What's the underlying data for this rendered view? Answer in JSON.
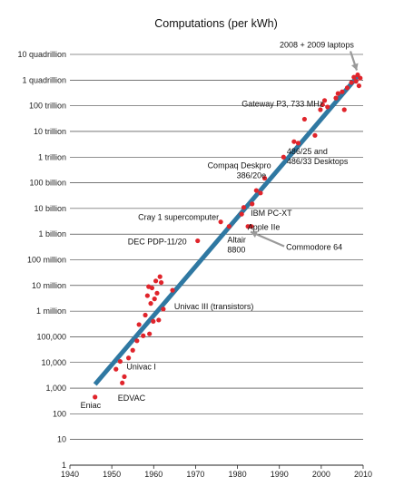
{
  "chart_data": {
    "type": "scatter",
    "title": "Computations (per kWh)",
    "xlim": [
      1940,
      2010
    ],
    "y_scale": "log10",
    "ylim": [
      1,
      10000000000000000
    ],
    "grid": true,
    "x_ticks": [
      {
        "value": 1940,
        "label": "1940"
      },
      {
        "value": 1950,
        "label": "1950"
      },
      {
        "value": 1960,
        "label": "1960"
      },
      {
        "value": 1970,
        "label": "1970"
      },
      {
        "value": 1980,
        "label": "1980"
      },
      {
        "value": 1990,
        "label": "1990"
      },
      {
        "value": 2000,
        "label": "2000"
      },
      {
        "value": 2010,
        "label": "2010"
      }
    ],
    "y_ticks": [
      {
        "value": 1,
        "label": "1"
      },
      {
        "value": 10,
        "label": "10"
      },
      {
        "value": 100,
        "label": "100"
      },
      {
        "value": 1000,
        "label": "1,000"
      },
      {
        "value": 10000,
        "label": "10,000"
      },
      {
        "value": 100000,
        "label": "100,000"
      },
      {
        "value": 1000000,
        "label": "1 million"
      },
      {
        "value": 10000000,
        "label": "10 million"
      },
      {
        "value": 100000000,
        "label": "100 million"
      },
      {
        "value": 1000000000,
        "label": "1 billion"
      },
      {
        "value": 10000000000,
        "label": "10 billion"
      },
      {
        "value": 100000000000,
        "label": "100 billion"
      },
      {
        "value": 1000000000000,
        "label": "1 trillion"
      },
      {
        "value": 10000000000000,
        "label": "10 trillion"
      },
      {
        "value": 100000000000000,
        "label": "100 trillion"
      },
      {
        "value": 1000000000000000,
        "label": "1 quadrillion"
      },
      {
        "value": 10000000000000000,
        "label": "10 quadrillion"
      }
    ],
    "trend_line": {
      "x": [
        1946,
        2009
      ],
      "y": [
        1400,
        1600000000000000
      ]
    },
    "points": [
      {
        "x": 1946,
        "y": 450
      },
      {
        "x": 1951,
        "y": 5500
      },
      {
        "x": 1952,
        "y": 11000
      },
      {
        "x": 1952.5,
        "y": 1600
      },
      {
        "x": 1953,
        "y": 2800
      },
      {
        "x": 1954,
        "y": 15000
      },
      {
        "x": 1955,
        "y": 30000
      },
      {
        "x": 1956,
        "y": 70000
      },
      {
        "x": 1956.5,
        "y": 300000
      },
      {
        "x": 1957.5,
        "y": 110000
      },
      {
        "x": 1958,
        "y": 700000
      },
      {
        "x": 1958.5,
        "y": 4000000
      },
      {
        "x": 1958.8,
        "y": 9000000
      },
      {
        "x": 1959,
        "y": 130000
      },
      {
        "x": 1959.3,
        "y": 2000000
      },
      {
        "x": 1959.6,
        "y": 8000000
      },
      {
        "x": 1959.9,
        "y": 400000
      },
      {
        "x": 1960.2,
        "y": 3000000
      },
      {
        "x": 1960.5,
        "y": 15000000
      },
      {
        "x": 1960.8,
        "y": 5000000
      },
      {
        "x": 1961.2,
        "y": 450000
      },
      {
        "x": 1961.5,
        "y": 22000000
      },
      {
        "x": 1961.8,
        "y": 13000000
      },
      {
        "x": 1962.3,
        "y": 1200000
      },
      {
        "x": 1964.5,
        "y": 6500000
      },
      {
        "x": 1970.5,
        "y": 550000000
      },
      {
        "x": 1976,
        "y": 3000000000
      },
      {
        "x": 1978,
        "y": 2000000000
      },
      {
        "x": 1981,
        "y": 6000000000
      },
      {
        "x": 1981.5,
        "y": 11000000000
      },
      {
        "x": 1982.5,
        "y": 2000000000
      },
      {
        "x": 1983.3,
        "y": 2000000000
      },
      {
        "x": 1983.5,
        "y": 15000000000
      },
      {
        "x": 1984.5,
        "y": 50000000000
      },
      {
        "x": 1985.5,
        "y": 40000000000
      },
      {
        "x": 1986.5,
        "y": 150000000000
      },
      {
        "x": 1991,
        "y": 1000000000000
      },
      {
        "x": 1993.5,
        "y": 4000000000000
      },
      {
        "x": 1994.5,
        "y": 3500000000000
      },
      {
        "x": 1996,
        "y": 30000000000000
      },
      {
        "x": 1998.5,
        "y": 7000000000000
      },
      {
        "x": 1999.8,
        "y": 70000000000000
      },
      {
        "x": 2000.3,
        "y": 110000000000000
      },
      {
        "x": 2000.8,
        "y": 160000000000000
      },
      {
        "x": 2001.5,
        "y": 90000000000000
      },
      {
        "x": 2003.5,
        "y": 200000000000000
      },
      {
        "x": 2004,
        "y": 300000000000000
      },
      {
        "x": 2005,
        "y": 350000000000000
      },
      {
        "x": 2005.5,
        "y": 70000000000000
      },
      {
        "x": 2006.2,
        "y": 500000000000000
      },
      {
        "x": 2007.2,
        "y": 800000000000000
      },
      {
        "x": 2007.8,
        "y": 1300000000000000
      },
      {
        "x": 2008.3,
        "y": 900000000000000
      },
      {
        "x": 2008.7,
        "y": 1600000000000000
      },
      {
        "x": 2009,
        "y": 600000000000000
      },
      {
        "x": 2009.3,
        "y": 1200000000000000
      }
    ],
    "annotations": [
      {
        "text": "Eniac",
        "anchor_x": 1946,
        "anchor_y": 450
      },
      {
        "text": "EDVAC",
        "anchor_x": 1951,
        "anchor_y": 5500
      },
      {
        "text": "Univac I",
        "anchor_x": 1952,
        "anchor_y": 11000
      },
      {
        "text": "Univac III (transistors)",
        "anchor_x": 1962.3,
        "anchor_y": 1200000
      },
      {
        "text": "DEC PDP-11/20",
        "anchor_x": 1970.5,
        "anchor_y": 550000000
      },
      {
        "text": "Cray 1 supercomputer",
        "anchor_x": 1976,
        "anchor_y": 3000000000
      },
      {
        "text": "Altair",
        "anchor_x": 1978,
        "anchor_y": 2000000000
      },
      {
        "text": "8800",
        "anchor_x": 1978,
        "anchor_y": 2000000000
      },
      {
        "text": "IBM PC-XT",
        "anchor_x": 1981,
        "anchor_y": 6000000000
      },
      {
        "text": "Apple IIe",
        "anchor_x": 1983.3,
        "anchor_y": 2000000000
      },
      {
        "text": "Commodore 64",
        "anchor_x": 1982.5,
        "anchor_y": 2000000000
      },
      {
        "text": "Compaq Deskpro",
        "anchor_x": 1986.5,
        "anchor_y": 150000000000
      },
      {
        "text": "386/20e",
        "anchor_x": 1986.5,
        "anchor_y": 150000000000
      },
      {
        "text": "486/25 and",
        "anchor_x": 1993.5,
        "anchor_y": 4000000000000
      },
      {
        "text": "486/33 Desktops",
        "anchor_x": 1993.5,
        "anchor_y": 4000000000000
      },
      {
        "text": "Gateway P3, 733 MHz",
        "anchor_x": 2000.3,
        "anchor_y": 110000000000000
      },
      {
        "text": "2008 + 2009 laptops",
        "anchor_x": 2008.7,
        "anchor_y": 1600000000000000
      }
    ]
  },
  "colors": {
    "points": "#e0242b",
    "trend_line": "#2f78a2",
    "grid": "#222222",
    "arrow": "#9a9a9a"
  }
}
